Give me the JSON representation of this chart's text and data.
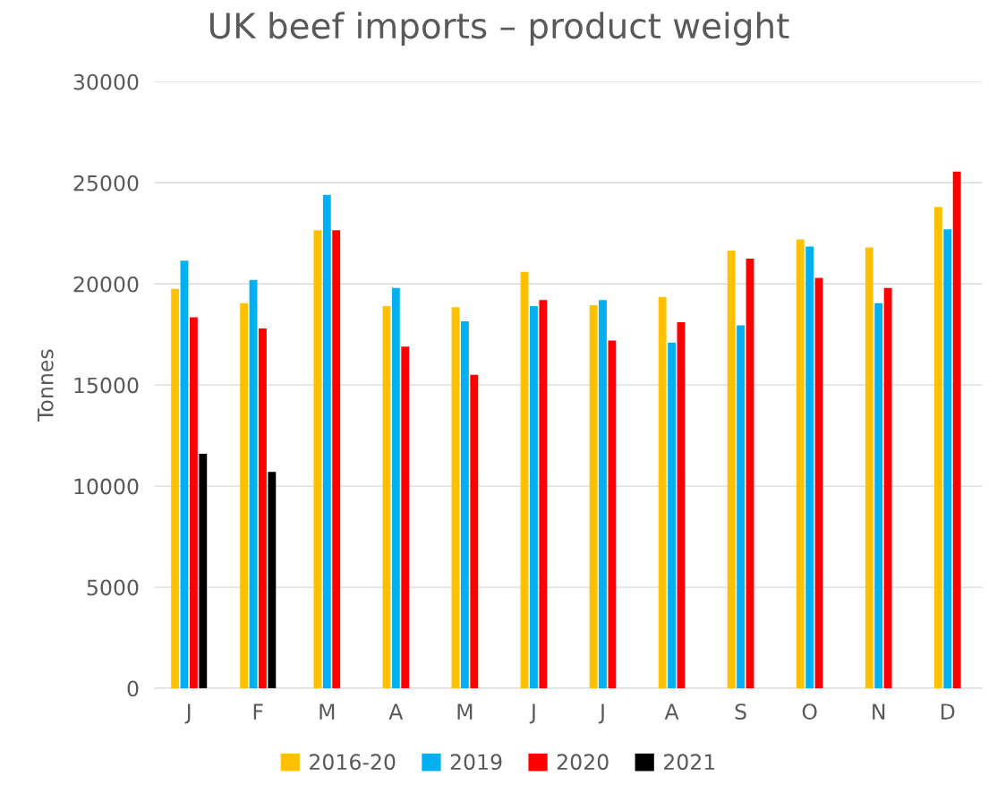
{
  "chart_data": {
    "type": "bar",
    "title": "UK beef imports – product weight",
    "ylabel": "Tonnes",
    "categories": [
      "J",
      "F",
      "M",
      "A",
      "M",
      "J",
      "J",
      "A",
      "S",
      "O",
      "N",
      "D"
    ],
    "series": [
      {
        "name": "2016-20",
        "color": "#ffc000",
        "values": [
          19750,
          19050,
          22650,
          18900,
          18850,
          20600,
          18950,
          19350,
          21650,
          22200,
          21800,
          23800
        ]
      },
      {
        "name": "2019",
        "color": "#00b0f0",
        "values": [
          21150,
          20200,
          24400,
          19800,
          18150,
          18900,
          19200,
          17100,
          17950,
          21850,
          19050,
          22700
        ]
      },
      {
        "name": "2020",
        "color": "#ff0000",
        "values": [
          18350,
          17800,
          22650,
          16900,
          15500,
          19200,
          17200,
          18100,
          21250,
          20300,
          19800,
          25550
        ]
      },
      {
        "name": "2021",
        "color": "#000000",
        "values": [
          11600,
          10700,
          null,
          null,
          null,
          null,
          null,
          null,
          null,
          null,
          null,
          null
        ]
      }
    ],
    "ylim": [
      0,
      30000
    ],
    "yticks": [
      0,
      5000,
      10000,
      15000,
      20000,
      25000,
      30000
    ],
    "grid": "y",
    "legend": "bottom"
  }
}
